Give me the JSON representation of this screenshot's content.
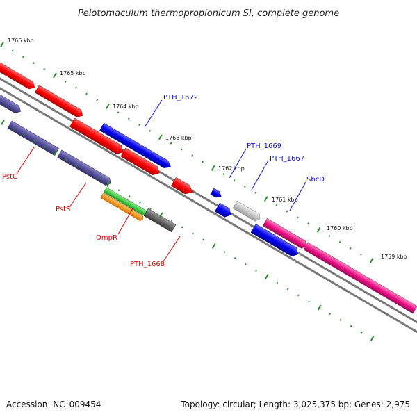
{
  "title": "Pelotomaculum thermopropionicum SI, complete genome",
  "footer": {
    "accession": "Accession: NC_009454",
    "summary": "Topology: circular; Length: 3,025,375 bp; Genes: 2,975"
  },
  "ticks": [
    "1766 kbp",
    "1765 kbp",
    "1764 kbp",
    "1763 kbp",
    "1762 kbp",
    "1761 kbp",
    "1760 kbp",
    "1759 kbp"
  ],
  "gene_labels": {
    "pstc": "PstC",
    "psts": "PstS",
    "ompr": "OmpR",
    "pth1668": "PTH_1668",
    "pth1672": "PTH_1672",
    "pth1669": "PTH_1669",
    "pth1667": "PTH_1667",
    "sbcd": "SbcD"
  },
  "colors": {
    "red": "#ff0000",
    "blue": "#0000ee",
    "purple": "#55509a",
    "green": "#33cc33",
    "orange": "#ff9900",
    "gray": "#666666",
    "lightgray": "#c8c8c8",
    "magenta": "#ee1188",
    "pink": "#ff66aa",
    "backbone": "#777777",
    "tick": "#2b8a2b",
    "label_red": "#dd0000",
    "label_blue": "#1010cc"
  }
}
